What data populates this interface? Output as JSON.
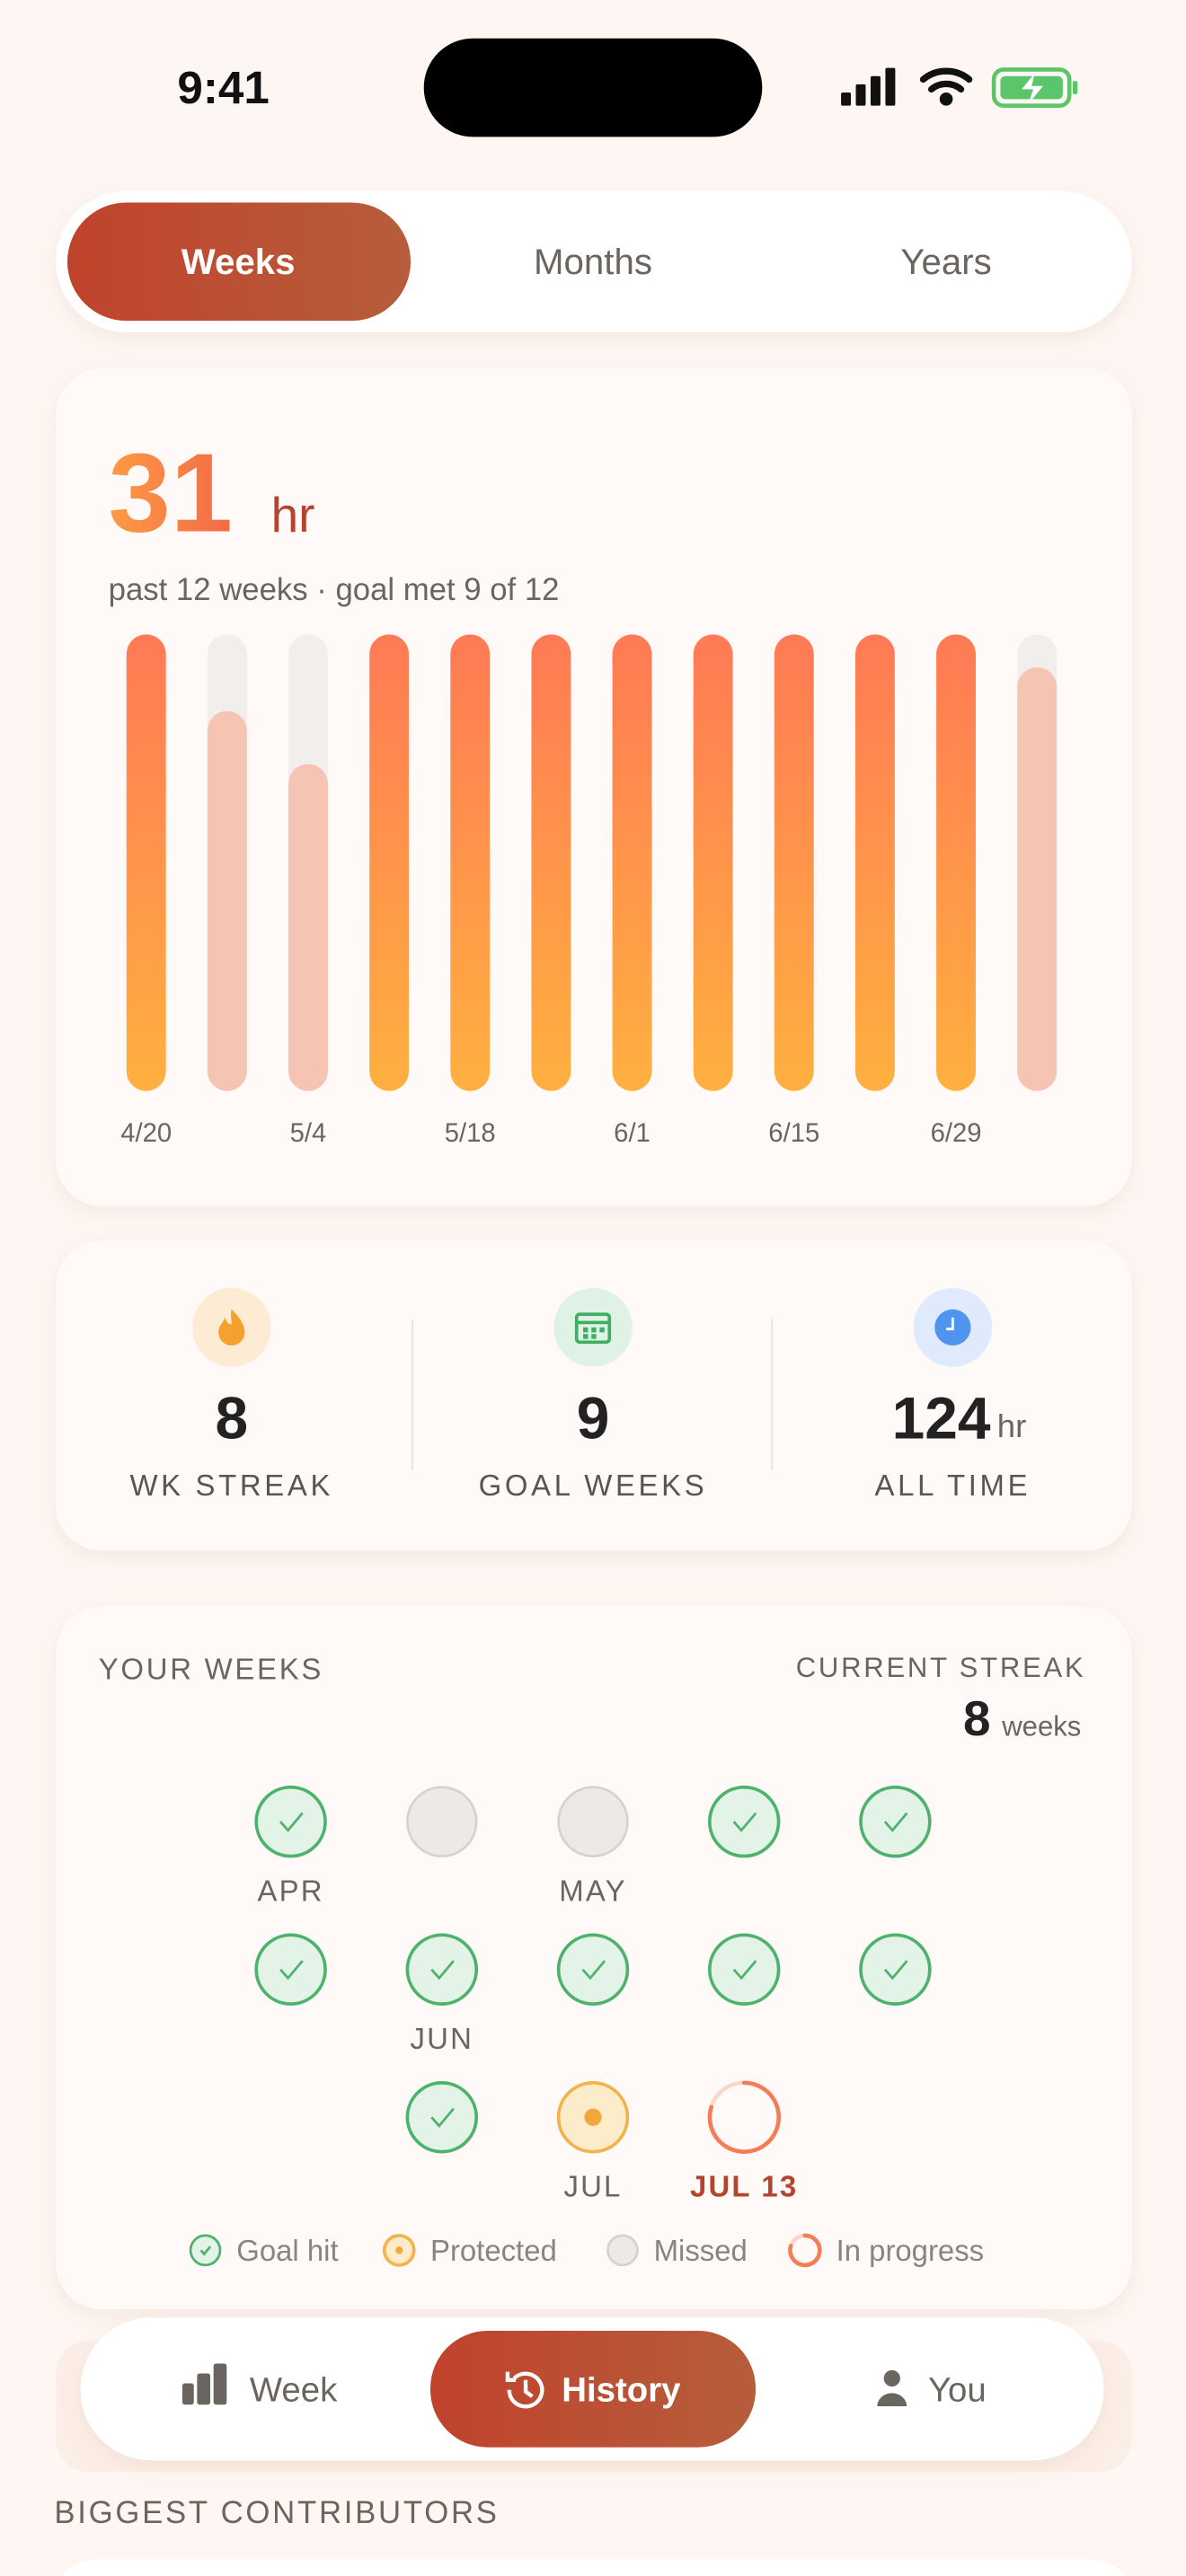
{
  "status_bar": {
    "time": "9:41"
  },
  "tabs": [
    "Weeks",
    "Months",
    "Years"
  ],
  "summary": {
    "total": "31",
    "unit": "hr",
    "subtitle": "past 12 weeks · goal met 9 of 12"
  },
  "chart_data": {
    "type": "bar",
    "categories": [
      "4/20",
      null,
      "5/4",
      null,
      "5/18",
      null,
      "6/1",
      null,
      "6/15",
      null,
      "6/29",
      null
    ],
    "values": [
      2.5,
      2.08,
      1.79,
      2.5,
      2.5,
      2.5,
      2.5,
      2.5,
      2.5,
      2.5,
      2.5,
      2.32
    ],
    "ylim": [
      0,
      2.5
    ],
    "color": [
      "#ff7a55",
      "#ffb040"
    ],
    "under_color": "#f5c4b3",
    "track_color": "#f1eeeb"
  },
  "stats": [
    {
      "value": "8",
      "label": "WK STREAK"
    },
    {
      "value": "9",
      "label": "GOAL WEEKS"
    },
    {
      "value": "124",
      "unit": "hr",
      "label": "ALL TIME"
    }
  ],
  "weeks": {
    "title": "YOUR WEEKS",
    "streak_label": "CURRENT STREAK",
    "streak_value": "8",
    "streak_unit": "weeks",
    "rows": [
      [
        {
          "status": "hit",
          "label": "APR"
        },
        {
          "status": "missed"
        },
        {
          "status": "missed",
          "label": "MAY"
        },
        {
          "status": "hit"
        },
        {
          "status": "hit"
        }
      ],
      [
        {
          "status": "hit"
        },
        {
          "status": "hit",
          "label": "JUN"
        },
        {
          "status": "hit"
        },
        {
          "status": "hit"
        },
        {
          "status": "hit"
        }
      ],
      [
        {
          "status": "hit"
        },
        {
          "status": "protected",
          "label": "JUL"
        },
        {
          "status": "progress",
          "label": "JUL 13"
        }
      ]
    ],
    "legend": [
      {
        "status": "hit",
        "label": "Goal hit"
      },
      {
        "status": "protected",
        "label": "Protected"
      },
      {
        "status": "missed",
        "label": "Missed"
      },
      {
        "status": "progress",
        "label": "In progress"
      }
    ]
  },
  "nav": [
    "Week",
    "History",
    "You"
  ],
  "section_title": "BIGGEST CONTRIBUTORS"
}
